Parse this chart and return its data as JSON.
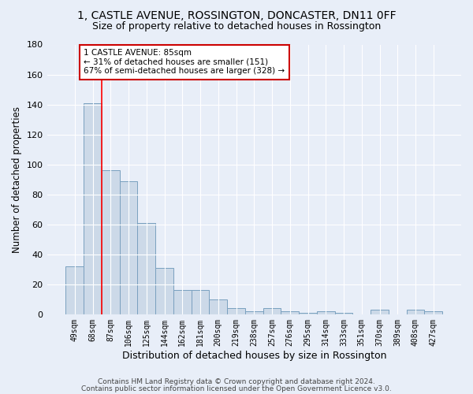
{
  "title1": "1, CASTLE AVENUE, ROSSINGTON, DONCASTER, DN11 0FF",
  "title2": "Size of property relative to detached houses in Rossington",
  "xlabel": "Distribution of detached houses by size in Rossington",
  "ylabel": "Number of detached properties",
  "bar_labels": [
    "49sqm",
    "68sqm",
    "87sqm",
    "106sqm",
    "125sqm",
    "144sqm",
    "162sqm",
    "181sqm",
    "200sqm",
    "219sqm",
    "238sqm",
    "257sqm",
    "276sqm",
    "295sqm",
    "314sqm",
    "333sqm",
    "351sqm",
    "370sqm",
    "389sqm",
    "408sqm",
    "427sqm"
  ],
  "bar_values": [
    32,
    141,
    96,
    89,
    61,
    31,
    16,
    16,
    10,
    4,
    2,
    4,
    2,
    1,
    2,
    1,
    0,
    3,
    0,
    3,
    2
  ],
  "bar_color": "#ccd9e8",
  "bar_edge_color": "#7aa0bf",
  "redline_index": 2,
  "ylim": [
    0,
    180
  ],
  "yticks": [
    0,
    20,
    40,
    60,
    80,
    100,
    120,
    140,
    160,
    180
  ],
  "annotation_line1": "1 CASTLE AVENUE: 85sqm",
  "annotation_line2": "← 31% of detached houses are smaller (151)",
  "annotation_line3": "67% of semi-detached houses are larger (328) →",
  "annotation_box_color": "#ffffff",
  "annotation_box_edge": "#cc0000",
  "footer1": "Contains HM Land Registry data © Crown copyright and database right 2024.",
  "footer2": "Contains public sector information licensed under the Open Government Licence v3.0.",
  "bg_color": "#e8eef8",
  "grid_color": "#ffffff",
  "title1_fontsize": 10,
  "title2_fontsize": 9,
  "xlabel_fontsize": 9,
  "ylabel_fontsize": 8.5,
  "footer_fontsize": 6.5
}
